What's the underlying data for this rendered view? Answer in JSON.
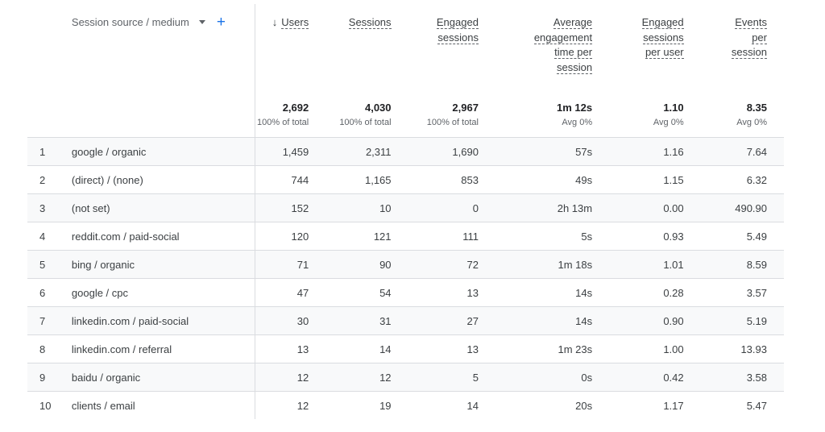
{
  "table": {
    "dimension_header": "Session source / medium",
    "sort_arrow": "↓",
    "columns": [
      {
        "lines": [
          "Users"
        ]
      },
      {
        "lines": [
          "Sessions"
        ]
      },
      {
        "lines": [
          "Engaged",
          "sessions"
        ]
      },
      {
        "lines": [
          "Average",
          "engagement",
          "time per",
          "session"
        ]
      },
      {
        "lines": [
          "Engaged",
          "sessions",
          "per user"
        ]
      },
      {
        "lines": [
          "Events",
          "per",
          "session"
        ]
      }
    ],
    "totals": [
      {
        "value": "2,692",
        "sub": "100% of total"
      },
      {
        "value": "4,030",
        "sub": "100% of total"
      },
      {
        "value": "2,967",
        "sub": "100% of total"
      },
      {
        "value": "1m 12s",
        "sub": "Avg 0%"
      },
      {
        "value": "1.10",
        "sub": "Avg 0%"
      },
      {
        "value": "8.35",
        "sub": "Avg 0%"
      }
    ],
    "rows": [
      {
        "idx": "1",
        "dim": "google / organic",
        "vals": [
          "1,459",
          "2,311",
          "1,690",
          "57s",
          "1.16",
          "7.64"
        ]
      },
      {
        "idx": "2",
        "dim": "(direct) / (none)",
        "vals": [
          "744",
          "1,165",
          "853",
          "49s",
          "1.15",
          "6.32"
        ]
      },
      {
        "idx": "3",
        "dim": "(not set)",
        "vals": [
          "152",
          "10",
          "0",
          "2h 13m",
          "0.00",
          "490.90"
        ]
      },
      {
        "idx": "4",
        "dim": "reddit.com / paid-social",
        "vals": [
          "120",
          "121",
          "111",
          "5s",
          "0.93",
          "5.49"
        ]
      },
      {
        "idx": "5",
        "dim": "bing / organic",
        "vals": [
          "71",
          "90",
          "72",
          "1m 18s",
          "1.01",
          "8.59"
        ]
      },
      {
        "idx": "6",
        "dim": "google / cpc",
        "vals": [
          "47",
          "54",
          "13",
          "14s",
          "0.28",
          "3.57"
        ]
      },
      {
        "idx": "7",
        "dim": "linkedin.com / paid-social",
        "vals": [
          "30",
          "31",
          "27",
          "14s",
          "0.90",
          "5.19"
        ]
      },
      {
        "idx": "8",
        "dim": "linkedin.com / referral",
        "vals": [
          "13",
          "14",
          "13",
          "1m 23s",
          "1.00",
          "13.93"
        ]
      },
      {
        "idx": "9",
        "dim": "baidu / organic",
        "vals": [
          "12",
          "12",
          "5",
          "0s",
          "0.42",
          "3.58"
        ]
      },
      {
        "idx": "10",
        "dim": "clients / email",
        "vals": [
          "12",
          "19",
          "14",
          "20s",
          "1.17",
          "5.47"
        ]
      }
    ]
  },
  "icons": {
    "dropdown": "dropdown-arrow-icon",
    "add": "plus-icon"
  },
  "colors": {
    "accent": "#1a73e8",
    "row_alt": "#f8f9fa",
    "border": "#dadce0"
  }
}
